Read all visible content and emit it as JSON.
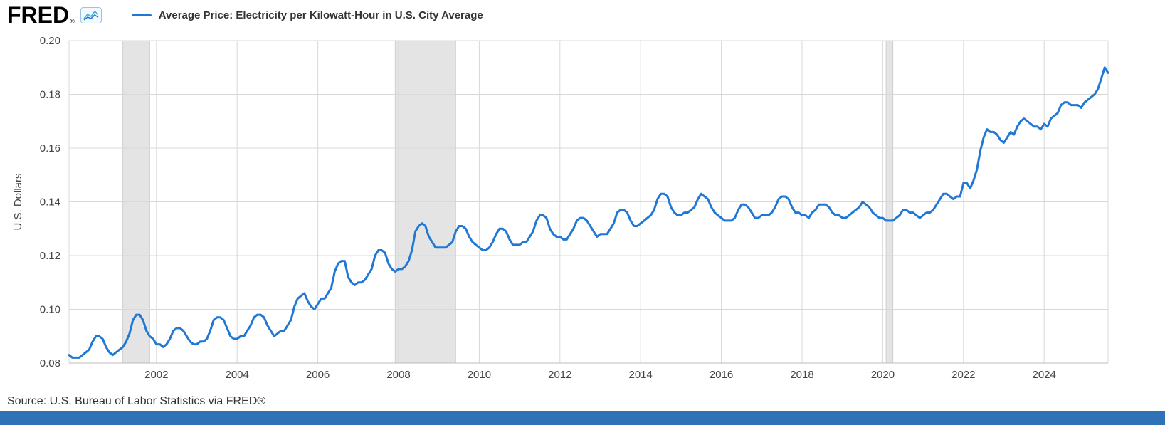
{
  "header": {
    "logo_text": "FRED",
    "registered": "®",
    "legend": {
      "label": "Average Price: Electricity per Kilowatt-Hour in U.S. City Average",
      "swatch_color": "#2077d4"
    }
  },
  "footer": {
    "source_text": "Source: U.S. Bureau of Labor Statistics via FRED®",
    "bar_color": "#2f72b5"
  },
  "chart_data": {
    "type": "line",
    "title": "Average Price: Electricity per Kilowatt-Hour in U.S. City Average",
    "xlabel": "",
    "ylabel": "U.S. Dollars",
    "ylim": [
      0.08,
      0.2
    ],
    "y_ticks": [
      0.08,
      0.1,
      0.12,
      0.14,
      0.16,
      0.18,
      0.2
    ],
    "x_ticks": [
      2002,
      2004,
      2006,
      2008,
      2010,
      2012,
      2014,
      2016,
      2018,
      2020,
      2022,
      2024
    ],
    "grid": true,
    "legend_position": "top-left",
    "line_color": "#2077d4",
    "grid_color": "#d8d8d8",
    "axis_text_color": "#444444",
    "recession_color": "#e4e4e4",
    "recession_bands": [
      {
        "start": 2001.167,
        "end": 2001.833
      },
      {
        "start": 2007.917,
        "end": 2009.417
      },
      {
        "start": 2020.083,
        "end": 2020.25
      }
    ],
    "series": [
      {
        "name": "Average Price: Electricity per Kilowatt-Hour in U.S. City Average",
        "unit": "U.S. Dollars",
        "frequency": "monthly",
        "start": "1999-11",
        "values": [
          0.083,
          0.082,
          0.082,
          0.082,
          0.083,
          0.084,
          0.085,
          0.088,
          0.09,
          0.09,
          0.089,
          0.086,
          0.084,
          0.083,
          0.084,
          0.085,
          0.086,
          0.088,
          0.091,
          0.096,
          0.098,
          0.098,
          0.096,
          0.092,
          0.09,
          0.089,
          0.087,
          0.087,
          0.086,
          0.087,
          0.089,
          0.092,
          0.093,
          0.093,
          0.092,
          0.09,
          0.088,
          0.087,
          0.087,
          0.088,
          0.088,
          0.089,
          0.092,
          0.096,
          0.097,
          0.097,
          0.096,
          0.093,
          0.09,
          0.089,
          0.089,
          0.09,
          0.09,
          0.092,
          0.094,
          0.097,
          0.098,
          0.098,
          0.097,
          0.094,
          0.092,
          0.09,
          0.091,
          0.092,
          0.092,
          0.094,
          0.096,
          0.101,
          0.104,
          0.105,
          0.106,
          0.103,
          0.101,
          0.1,
          0.102,
          0.104,
          0.104,
          0.106,
          0.108,
          0.114,
          0.117,
          0.118,
          0.118,
          0.112,
          0.11,
          0.109,
          0.11,
          0.11,
          0.111,
          0.113,
          0.115,
          0.12,
          0.122,
          0.122,
          0.121,
          0.117,
          0.115,
          0.114,
          0.115,
          0.115,
          0.116,
          0.118,
          0.122,
          0.129,
          0.131,
          0.132,
          0.131,
          0.127,
          0.125,
          0.123,
          0.123,
          0.123,
          0.123,
          0.124,
          0.125,
          0.129,
          0.131,
          0.131,
          0.13,
          0.127,
          0.125,
          0.124,
          0.123,
          0.122,
          0.122,
          0.123,
          0.125,
          0.128,
          0.13,
          0.13,
          0.129,
          0.126,
          0.124,
          0.124,
          0.124,
          0.125,
          0.125,
          0.127,
          0.129,
          0.133,
          0.135,
          0.135,
          0.134,
          0.13,
          0.128,
          0.127,
          0.127,
          0.126,
          0.126,
          0.128,
          0.13,
          0.133,
          0.134,
          0.134,
          0.133,
          0.131,
          0.129,
          0.127,
          0.128,
          0.128,
          0.128,
          0.13,
          0.132,
          0.136,
          0.137,
          0.137,
          0.136,
          0.133,
          0.131,
          0.131,
          0.132,
          0.133,
          0.134,
          0.135,
          0.137,
          0.141,
          0.143,
          0.143,
          0.142,
          0.138,
          0.136,
          0.135,
          0.135,
          0.136,
          0.136,
          0.137,
          0.138,
          0.141,
          0.143,
          0.142,
          0.141,
          0.138,
          0.136,
          0.135,
          0.134,
          0.133,
          0.133,
          0.133,
          0.134,
          0.137,
          0.139,
          0.139,
          0.138,
          0.136,
          0.134,
          0.134,
          0.135,
          0.135,
          0.135,
          0.136,
          0.138,
          0.141,
          0.142,
          0.142,
          0.141,
          0.138,
          0.136,
          0.136,
          0.135,
          0.135,
          0.134,
          0.136,
          0.137,
          0.139,
          0.139,
          0.139,
          0.138,
          0.136,
          0.135,
          0.135,
          0.134,
          0.134,
          0.135,
          0.136,
          0.137,
          0.138,
          0.14,
          0.139,
          0.138,
          0.136,
          0.135,
          0.134,
          0.134,
          0.133,
          0.133,
          0.133,
          0.134,
          0.135,
          0.137,
          0.137,
          0.136,
          0.136,
          0.135,
          0.134,
          0.135,
          0.136,
          0.136,
          0.137,
          0.139,
          0.141,
          0.143,
          0.143,
          0.142,
          0.141,
          0.142,
          0.142,
          0.147,
          0.147,
          0.145,
          0.148,
          0.152,
          0.159,
          0.164,
          0.167,
          0.166,
          0.166,
          0.165,
          0.163,
          0.162,
          0.164,
          0.166,
          0.165,
          0.168,
          0.17,
          0.171,
          0.17,
          0.169,
          0.168,
          0.168,
          0.167,
          0.169,
          0.168,
          0.171,
          0.172,
          0.173,
          0.176,
          0.177,
          0.177,
          0.176,
          0.176,
          0.176,
          0.175,
          0.177,
          0.178,
          0.179,
          0.18,
          0.182,
          0.186,
          0.19,
          0.188
        ]
      }
    ]
  }
}
